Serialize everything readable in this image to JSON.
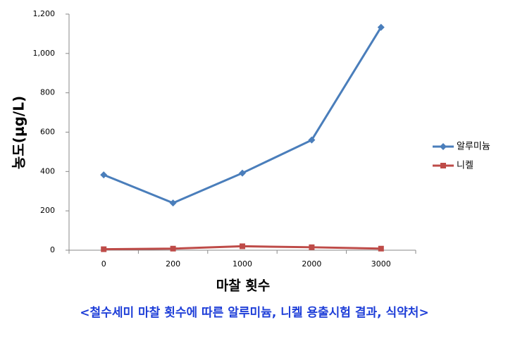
{
  "chart_data": {
    "type": "line",
    "y_label": "농도(μg/L)",
    "x_label": "마찰 횟수",
    "caption": "<철수세미 마찰 횟수에 따른 알루미늄, 니켈 용출시험 결과, 식약처>",
    "categories": [
      "0",
      "200",
      "1000",
      "2000",
      "3000"
    ],
    "series": [
      {
        "name": "알루미늄",
        "color": "#4a7ebb",
        "marker": "diamond",
        "values": [
          383,
          240,
          392,
          560,
          1133
        ]
      },
      {
        "name": "니켈",
        "color": "#be4b48",
        "marker": "square",
        "values": [
          5,
          8,
          20,
          15,
          8
        ]
      }
    ],
    "ylim": [
      0,
      1200
    ],
    "yticks": [
      0,
      200,
      400,
      600,
      800,
      {
        "value": 1000,
        "label": "1,000"
      },
      {
        "value": 1200,
        "label": "1,200"
      }
    ],
    "grid": false,
    "legend": "right"
  }
}
